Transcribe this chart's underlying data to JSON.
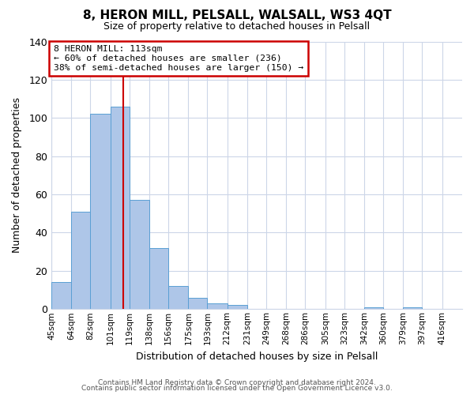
{
  "title": "8, HERON MILL, PELSALL, WALSALL, WS3 4QT",
  "subtitle": "Size of property relative to detached houses in Pelsall",
  "xlabel": "Distribution of detached houses by size in Pelsall",
  "ylabel": "Number of detached properties",
  "bar_labels": [
    "45sqm",
    "64sqm",
    "82sqm",
    "101sqm",
    "119sqm",
    "138sqm",
    "156sqm",
    "175sqm",
    "193sqm",
    "212sqm",
    "231sqm",
    "249sqm",
    "268sqm",
    "286sqm",
    "305sqm",
    "323sqm",
    "342sqm",
    "360sqm",
    "379sqm",
    "397sqm",
    "416sqm"
  ],
  "bar_values": [
    14,
    51,
    102,
    106,
    57,
    32,
    12,
    6,
    3,
    2,
    0,
    0,
    0,
    0,
    0,
    0,
    1,
    0,
    1,
    0,
    0
  ],
  "bin_edges": [
    45,
    64,
    82,
    101,
    119,
    138,
    156,
    175,
    193,
    212,
    231,
    249,
    268,
    286,
    305,
    323,
    342,
    360,
    379,
    397,
    416,
    435
  ],
  "bar_color": "#aec6e8",
  "bar_edge_color": "#5a9fd4",
  "vline_x": 113,
  "vline_color": "#cc0000",
  "ylim": [
    0,
    140
  ],
  "yticks": [
    0,
    20,
    40,
    60,
    80,
    100,
    120,
    140
  ],
  "annotation_title": "8 HERON MILL: 113sqm",
  "annotation_line1": "← 60% of detached houses are smaller (236)",
  "annotation_line2": "38% of semi-detached houses are larger (150) →",
  "annotation_box_color": "#ffffff",
  "annotation_box_edge_color": "#cc0000",
  "footer_line1": "Contains HM Land Registry data © Crown copyright and database right 2024.",
  "footer_line2": "Contains public sector information licensed under the Open Government Licence v3.0.",
  "background_color": "#ffffff",
  "grid_color": "#ccd6e8"
}
